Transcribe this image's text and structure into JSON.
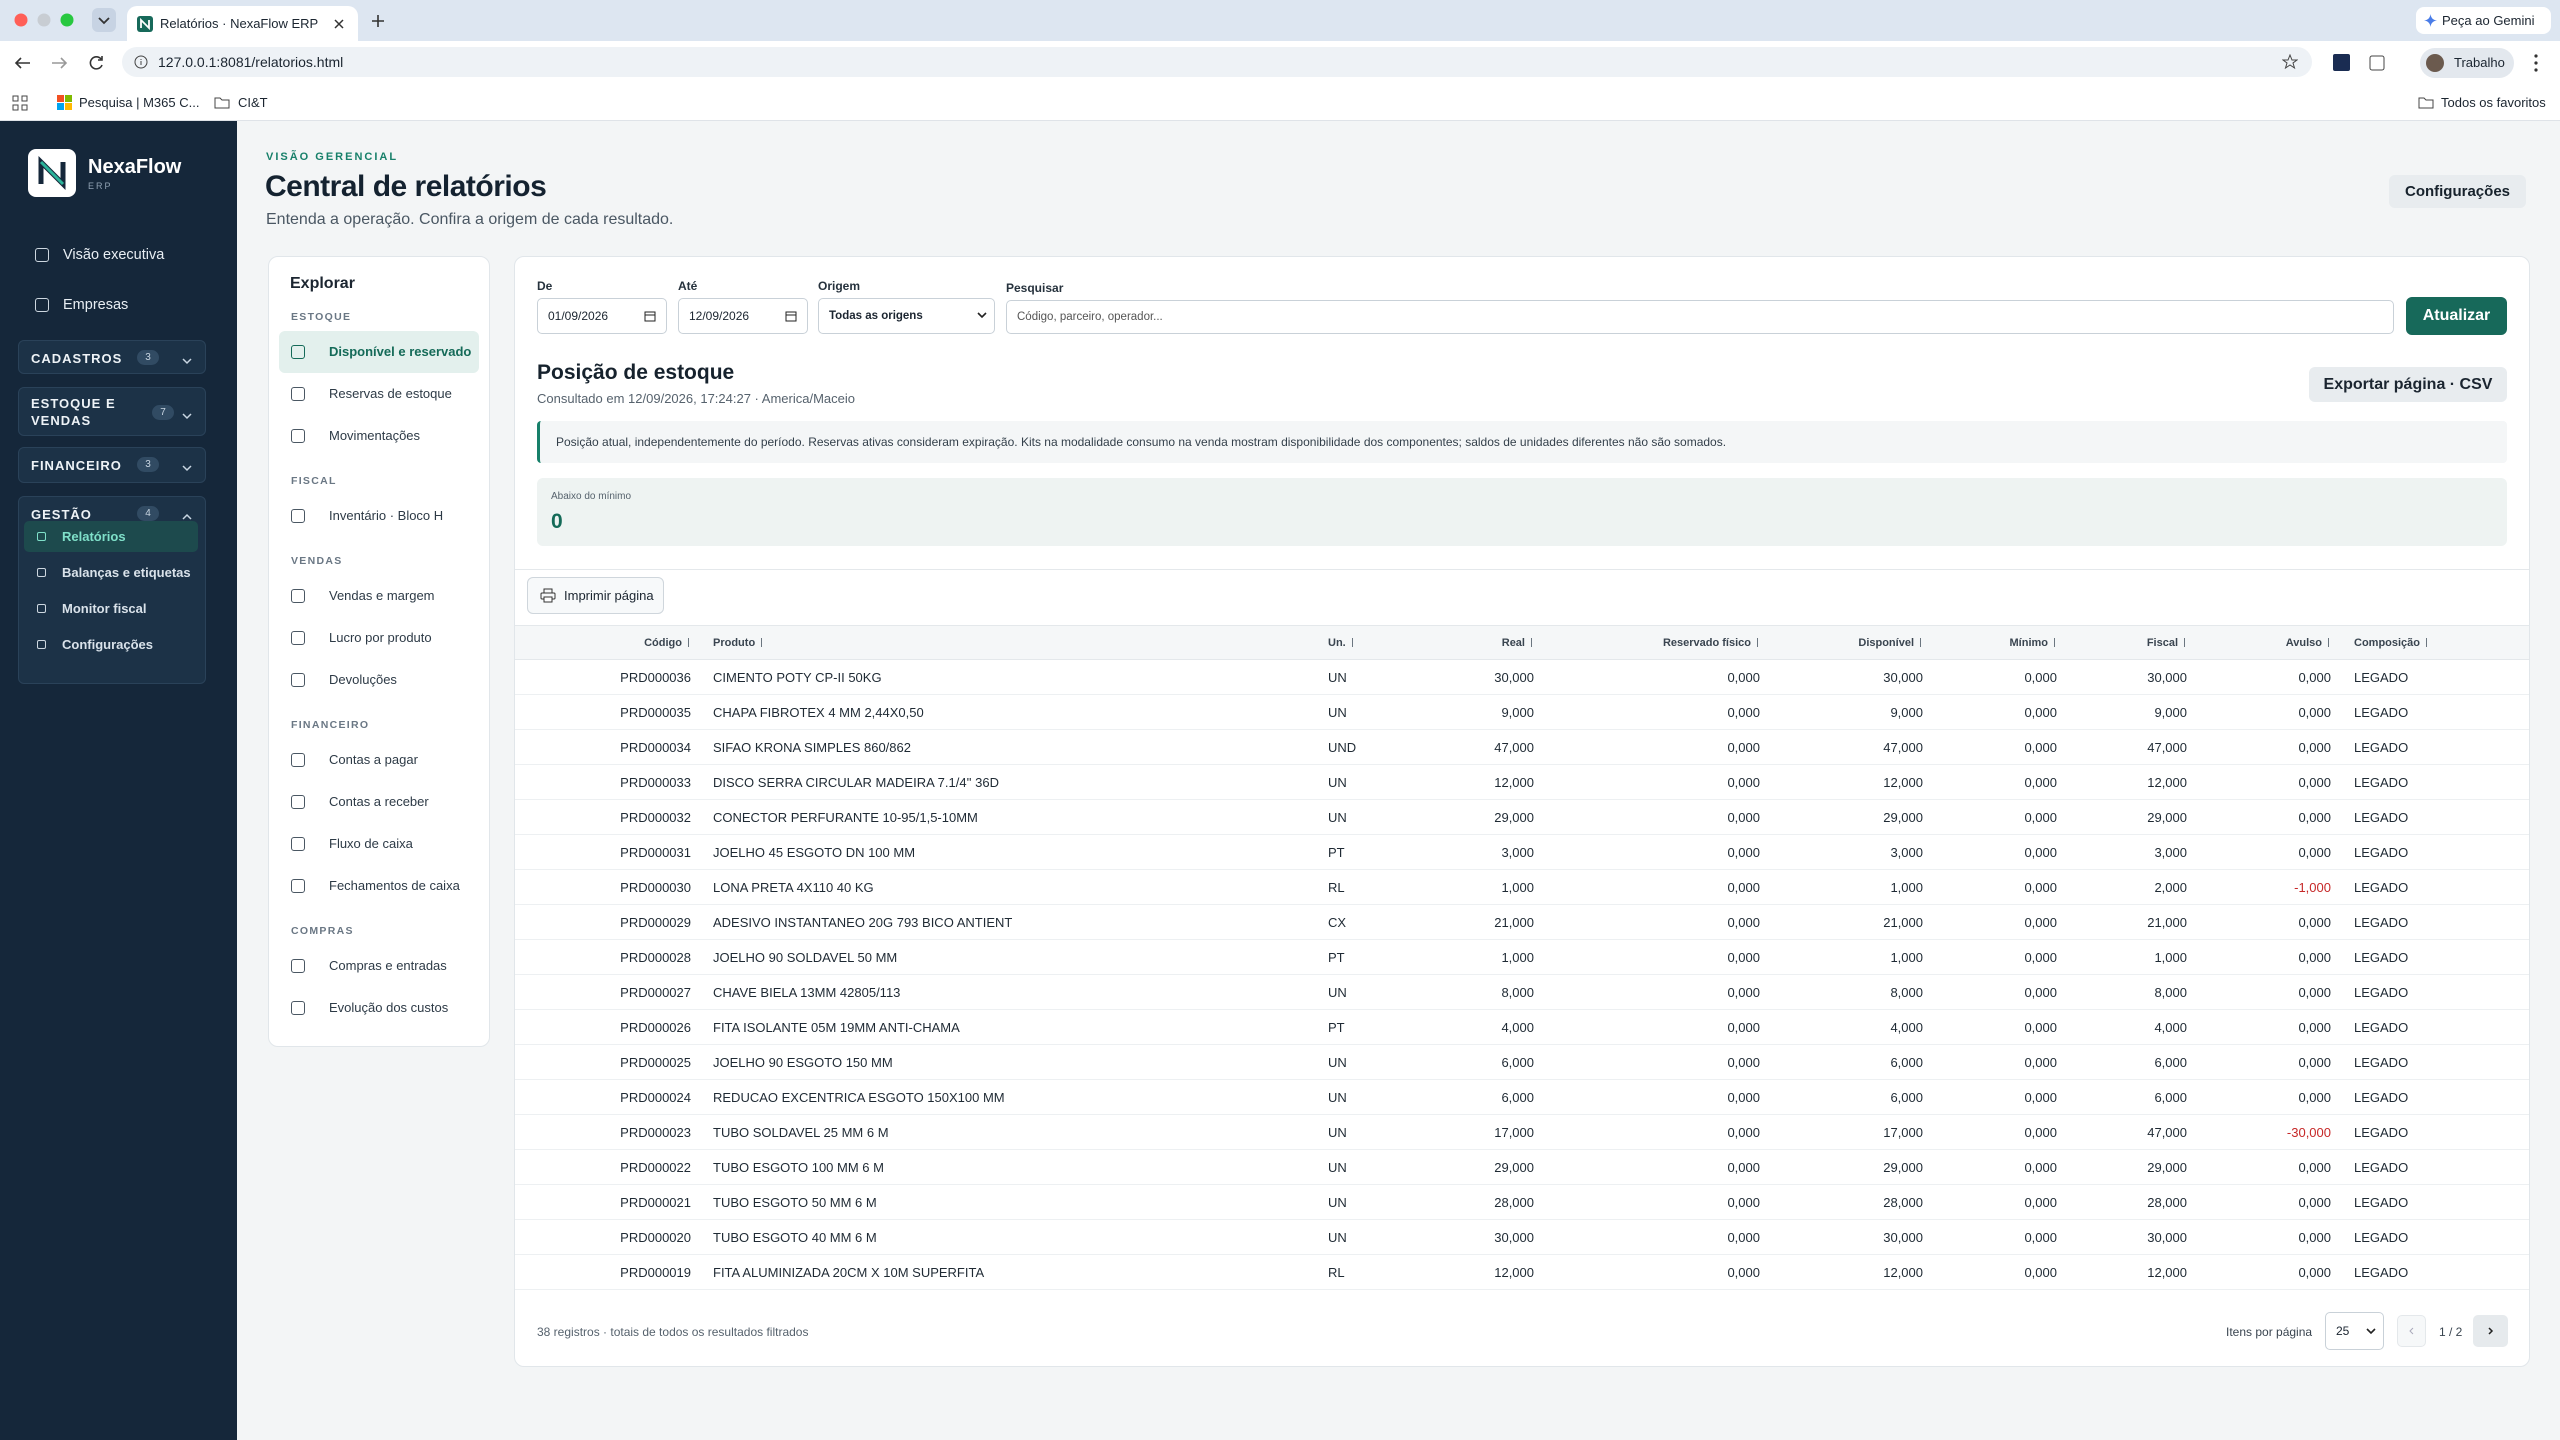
{
  "browser": {
    "tab_title": "Relatórios · NexaFlow ERP",
    "url": "127.0.0.1:8081/relatorios.html",
    "gemini": "Peça ao Gemini",
    "profile": "Trabalho",
    "bookmarks": [
      "Pesquisa | M365 C...",
      "CI&T"
    ],
    "all_bookmarks": "Todos os favoritos"
  },
  "sidebar": {
    "brand": "NexaFlow",
    "brand_sub": "ERP",
    "top_links": [
      "Visão executiva",
      "Empresas"
    ],
    "groups": [
      {
        "label": "CADASTROS",
        "count": "3"
      },
      {
        "label": "ESTOQUE E VENDAS",
        "count": "7"
      },
      {
        "label": "FINANCEIRO",
        "count": "3"
      },
      {
        "label": "GESTÃO",
        "count": "4",
        "items": [
          "Relatórios",
          "Balanças e etiquetas",
          "Monitor fiscal",
          "Configurações"
        ]
      }
    ]
  },
  "header": {
    "eyebrow": "VISÃO GERENCIAL",
    "title": "Central de relatórios",
    "subtitle": "Entenda a operação. Confira a origem de cada resultado.",
    "settings_button": "Configurações"
  },
  "explore": {
    "title": "Explorar",
    "sections": [
      {
        "label": "ESTOQUE",
        "items": [
          "Disponível e reservado",
          "Reservas de estoque",
          "Movimentações"
        ]
      },
      {
        "label": "FISCAL",
        "items": [
          "Inventário · Bloco H"
        ]
      },
      {
        "label": "VENDAS",
        "items": [
          "Vendas e margem",
          "Lucro por produto",
          "Devoluções"
        ]
      },
      {
        "label": "FINANCEIRO",
        "items": [
          "Contas a pagar",
          "Contas a receber",
          "Fluxo de caixa",
          "Fechamentos de caixa"
        ]
      },
      {
        "label": "COMPRAS",
        "items": [
          "Compras e entradas",
          "Evolução dos custos"
        ]
      }
    ]
  },
  "filters": {
    "from_label": "De",
    "from": "01/09/2026",
    "to_label": "Até",
    "to": "12/09/2026",
    "origin_label": "Origem",
    "origin": "Todas as origens",
    "search_label": "Pesquisar",
    "search_placeholder": "Código, parceiro, operador...",
    "refresh": "Atualizar"
  },
  "report": {
    "title": "Posição de estoque",
    "consulted": "Consultado em 12/09/2026, 17:24:27 · America/Maceio",
    "export": "Exportar página · CSV",
    "notice": "Posição atual, independentemente do período. Reservas ativas consideram expiração. Kits na modalidade consumo na venda mostram disponibilidade dos componentes; saldos de unidades diferentes não são somados.",
    "kpi_label": "Abaixo do mínimo",
    "kpi_value": "0",
    "print": "Imprimir página"
  },
  "table": {
    "columns": [
      "Código",
      "Produto",
      "Un.",
      "Real",
      "Reservado físico",
      "Disponível",
      "Mínimo",
      "Fiscal",
      "Avulso",
      "Composição"
    ],
    "rows": [
      [
        "PRD000036",
        "CIMENTO POTY CP-II 50KG",
        "UN",
        "30,000",
        "0,000",
        "30,000",
        "0,000",
        "30,000",
        "0,000",
        "LEGADO"
      ],
      [
        "PRD000035",
        "CHAPA FIBROTEX 4 MM 2,44X0,50",
        "UN",
        "9,000",
        "0,000",
        "9,000",
        "0,000",
        "9,000",
        "0,000",
        "LEGADO"
      ],
      [
        "PRD000034",
        "SIFAO KRONA SIMPLES 860/862",
        "UND",
        "47,000",
        "0,000",
        "47,000",
        "0,000",
        "47,000",
        "0,000",
        "LEGADO"
      ],
      [
        "PRD000033",
        "DISCO SERRA CIRCULAR MADEIRA 7.1/4'' 36D",
        "UN",
        "12,000",
        "0,000",
        "12,000",
        "0,000",
        "12,000",
        "0,000",
        "LEGADO"
      ],
      [
        "PRD000032",
        "CONECTOR PERFURANTE 10-95/1,5-10MM",
        "UN",
        "29,000",
        "0,000",
        "29,000",
        "0,000",
        "29,000",
        "0,000",
        "LEGADO"
      ],
      [
        "PRD000031",
        "JOELHO 45 ESGOTO DN 100 MM",
        "PT",
        "3,000",
        "0,000",
        "3,000",
        "0,000",
        "3,000",
        "0,000",
        "LEGADO"
      ],
      [
        "PRD000030",
        "LONA PRETA 4X110 40 KG",
        "RL",
        "1,000",
        "0,000",
        "1,000",
        "0,000",
        "2,000",
        "-1,000",
        "LEGADO"
      ],
      [
        "PRD000029",
        "ADESIVO INSTANTANEO 20G 793 BICO ANTIENT",
        "CX",
        "21,000",
        "0,000",
        "21,000",
        "0,000",
        "21,000",
        "0,000",
        "LEGADO"
      ],
      [
        "PRD000028",
        "JOELHO 90 SOLDAVEL 50 MM",
        "PT",
        "1,000",
        "0,000",
        "1,000",
        "0,000",
        "1,000",
        "0,000",
        "LEGADO"
      ],
      [
        "PRD000027",
        "CHAVE BIELA 13MM 42805/113",
        "UN",
        "8,000",
        "0,000",
        "8,000",
        "0,000",
        "8,000",
        "0,000",
        "LEGADO"
      ],
      [
        "PRD000026",
        "FITA ISOLANTE 05M 19MM ANTI-CHAMA",
        "PT",
        "4,000",
        "0,000",
        "4,000",
        "0,000",
        "4,000",
        "0,000",
        "LEGADO"
      ],
      [
        "PRD000025",
        "JOELHO 90 ESGOTO 150 MM",
        "UN",
        "6,000",
        "0,000",
        "6,000",
        "0,000",
        "6,000",
        "0,000",
        "LEGADO"
      ],
      [
        "PRD000024",
        "REDUCAO EXCENTRICA ESGOTO 150X100 MM",
        "UN",
        "6,000",
        "0,000",
        "6,000",
        "0,000",
        "6,000",
        "0,000",
        "LEGADO"
      ],
      [
        "PRD000023",
        "TUBO SOLDAVEL 25 MM 6 M",
        "UN",
        "17,000",
        "0,000",
        "17,000",
        "0,000",
        "47,000",
        "-30,000",
        "LEGADO"
      ],
      [
        "PRD000022",
        "TUBO ESGOTO 100 MM 6 M",
        "UN",
        "29,000",
        "0,000",
        "29,000",
        "0,000",
        "29,000",
        "0,000",
        "LEGADO"
      ],
      [
        "PRD000021",
        "TUBO ESGOTO 50 MM 6 M",
        "UN",
        "28,000",
        "0,000",
        "28,000",
        "0,000",
        "28,000",
        "0,000",
        "LEGADO"
      ],
      [
        "PRD000020",
        "TUBO ESGOTO 40 MM 6 M",
        "UN",
        "30,000",
        "0,000",
        "30,000",
        "0,000",
        "30,000",
        "0,000",
        "LEGADO"
      ],
      [
        "PRD000019",
        "FITA ALUMINIZADA 20CM X 10M SUPERFITA",
        "RL",
        "12,000",
        "0,000",
        "12,000",
        "0,000",
        "12,000",
        "0,000",
        "LEGADO"
      ]
    ]
  },
  "footer": {
    "summary": "38 registros · totais de todos os resultados filtrados",
    "per_page_label": "Itens por página",
    "per_page": "25",
    "page": "1 / 2"
  }
}
